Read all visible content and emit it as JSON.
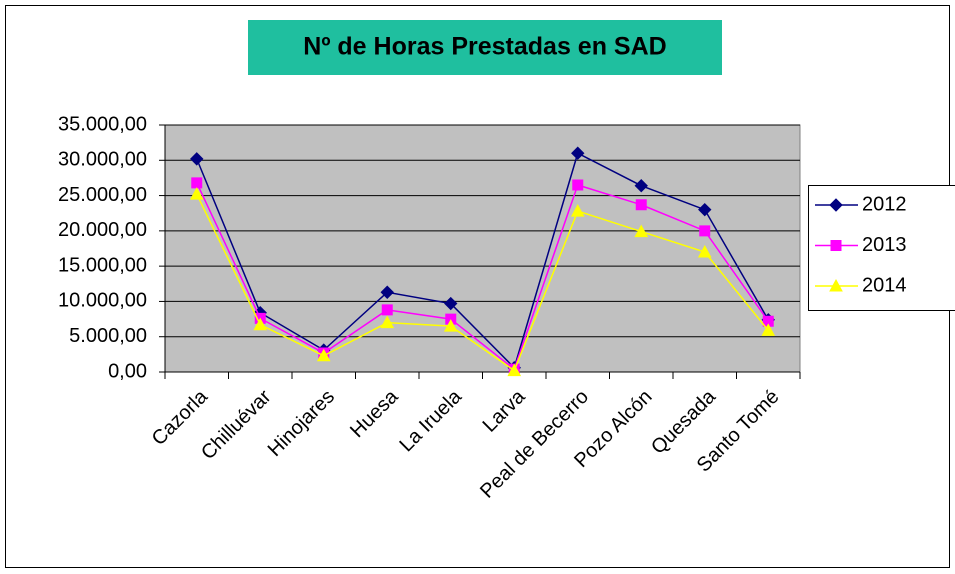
{
  "chart_data": {
    "type": "line",
    "title": "Nº de Horas Prestadas en SAD",
    "categories": [
      "Cazorla",
      "Chilluévar",
      "Hinojares",
      "Huesa",
      "La Iruela",
      "Larva",
      "Peal de Becerro",
      "Pozo Alcón",
      "Quesada",
      "Santo Tomé"
    ],
    "series": [
      {
        "name": "2012",
        "color": "#000080",
        "marker": "diamond",
        "values": [
          30200,
          8400,
          3100,
          11300,
          9700,
          600,
          31000,
          26400,
          23000,
          7400
        ]
      },
      {
        "name": "2013",
        "color": "#ff00ff",
        "marker": "square",
        "values": [
          26800,
          7600,
          2700,
          8800,
          7500,
          400,
          26500,
          23700,
          20000,
          7200
        ]
      },
      {
        "name": "2014",
        "color": "#ffff00",
        "marker": "triangle",
        "values": [
          25200,
          6700,
          2300,
          7000,
          6500,
          200,
          22800,
          19900,
          17000,
          5900
        ]
      }
    ],
    "ylim": [
      0,
      35000
    ],
    "yticks": [
      {
        "value": 0,
        "label": "0,00"
      },
      {
        "value": 5000,
        "label": "5.000,00"
      },
      {
        "value": 10000,
        "label": "10.000,00"
      },
      {
        "value": 15000,
        "label": "15.000,00"
      },
      {
        "value": 20000,
        "label": "20.000,00"
      },
      {
        "value": 25000,
        "label": "25.000,00"
      },
      {
        "value": 30000,
        "label": "30.000,00"
      },
      {
        "value": 35000,
        "label": "35.000,00"
      }
    ],
    "grid": true,
    "legend": "right"
  }
}
